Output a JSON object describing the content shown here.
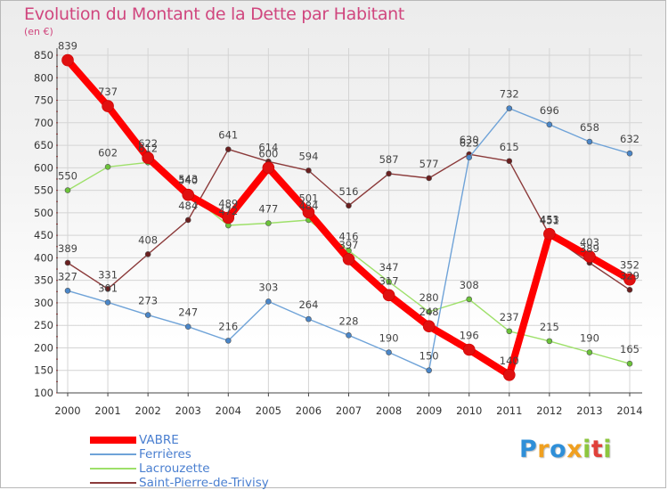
{
  "title": "Evolution du Montant de la Dette par Habitant",
  "unit": "(en €)",
  "logo": {
    "text": "Proxiti",
    "letters": [
      {
        "ch": "P",
        "color": "#2f8fd8"
      },
      {
        "ch": "r",
        "color": "#f0a020"
      },
      {
        "ch": "o",
        "color": "#2f8fd8"
      },
      {
        "ch": "x",
        "color": "#f0a020"
      },
      {
        "ch": "i",
        "color": "#8dc63f"
      },
      {
        "ch": "t",
        "color": "#e0403a"
      },
      {
        "ch": "i",
        "color": "#8dc63f"
      }
    ]
  },
  "chart_data": {
    "type": "line",
    "title": "Evolution du Montant de la Dette par Habitant",
    "ylabel": "(en €)",
    "xlabel": "",
    "x": [
      2000,
      2001,
      2002,
      2003,
      2004,
      2005,
      2006,
      2007,
      2008,
      2009,
      2010,
      2011,
      2012,
      2013,
      2014
    ],
    "ylim": [
      100,
      850
    ],
    "yticks": [
      100,
      150,
      200,
      250,
      300,
      350,
      400,
      450,
      500,
      550,
      600,
      650,
      700,
      750,
      800,
      850
    ],
    "grid": true,
    "legend_position": "bottom-left",
    "series": [
      {
        "name": "VABRE",
        "color": "#ff0000",
        "marker_color": "#e01010",
        "width": 8,
        "values": [
          839,
          737,
          622,
          540,
          489,
          600,
          501,
          397,
          317,
          248,
          196,
          140,
          453,
          403,
          352
        ]
      },
      {
        "name": "Ferrières",
        "color": "#6fa3d8",
        "marker_color": "#4a86c8",
        "width": 1.4,
        "values": [
          327,
          301,
          273,
          247,
          216,
          303,
          264,
          228,
          190,
          150,
          623,
          732,
          696,
          658,
          632
        ]
      },
      {
        "name": "Lacrouzette",
        "color": "#9ee06a",
        "marker_color": "#6cc33a",
        "width": 1.4,
        "values": [
          550,
          602,
          612,
          543,
          472,
          477,
          484,
          416,
          347,
          280,
          308,
          237,
          215,
          190,
          165
        ]
      },
      {
        "name": "Saint-Pierre-de-Trivisy",
        "color": "#8b3a3a",
        "marker_color": "#6a1f1f",
        "width": 1.4,
        "values": [
          389,
          331,
          408,
          484,
          641,
          614,
          594,
          516,
          587,
          577,
          630,
          615,
          451,
          389,
          329
        ]
      }
    ]
  }
}
